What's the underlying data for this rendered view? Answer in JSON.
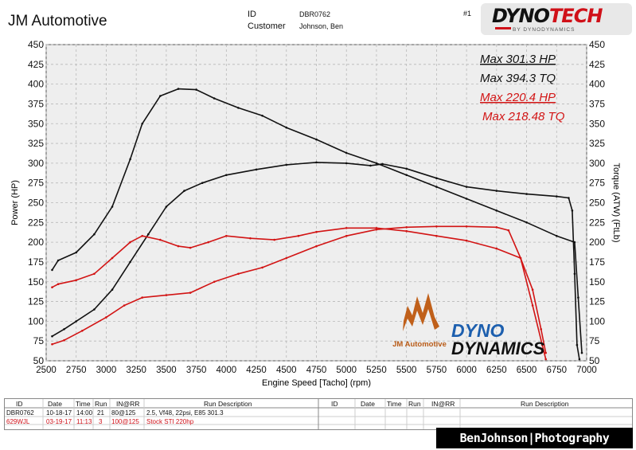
{
  "header": {
    "title": "JM Automotive",
    "id_label": "ID",
    "customer_label": "Customer",
    "id_value": "DBR0762",
    "customer_value": "Johnson, Ben",
    "run_number": "#1",
    "logo_text_a": "DYNO",
    "logo_text_b": "TECH",
    "logo_sub": "BY DYNODYNAMICS"
  },
  "legend": {
    "run1_hp": "Max 301.3 HP",
    "run1_tq": "Max 394.3 TQ",
    "run2_hp": "Max 220.4 HP",
    "run2_tq": "Max 218.48 TQ"
  },
  "overlay_logos": {
    "jm": "JM Automotive",
    "dyno": "DYNO",
    "dynamics": "DYNAMICS"
  },
  "colors": {
    "run1": "#111111",
    "run2": "#d21414",
    "grid": "#b8b8b8",
    "plot_bg": "#eeeeee"
  },
  "chart_data": {
    "type": "line",
    "xlabel": "Engine Speed [Tacho] (rpm)",
    "ylabel_left": "Power (HP)",
    "ylabel_right": "Torque (ATW) (FtLb)",
    "xlim": [
      2500,
      7000
    ],
    "ylim": [
      50,
      450
    ],
    "x_ticks": [
      2500,
      2750,
      3000,
      3250,
      3500,
      3750,
      4000,
      4250,
      4500,
      4750,
      5000,
      5250,
      5500,
      5750,
      6000,
      6250,
      6500,
      6750,
      7000
    ],
    "y_ticks": [
      50,
      75,
      100,
      125,
      150,
      175,
      200,
      225,
      250,
      275,
      300,
      325,
      350,
      375,
      400,
      425,
      450
    ],
    "grid": true,
    "series": [
      {
        "name": "Max 301.3 HP",
        "color": "#111111",
        "points": [
          [
            2550,
            81
          ],
          [
            2650,
            90
          ],
          [
            2750,
            100
          ],
          [
            2900,
            115
          ],
          [
            3050,
            140
          ],
          [
            3200,
            175
          ],
          [
            3350,
            210
          ],
          [
            3500,
            245
          ],
          [
            3650,
            265
          ],
          [
            3800,
            275
          ],
          [
            4000,
            285
          ],
          [
            4250,
            292
          ],
          [
            4500,
            298
          ],
          [
            4750,
            301
          ],
          [
            5000,
            300
          ],
          [
            5200,
            297
          ],
          [
            5300,
            299
          ],
          [
            5500,
            293
          ],
          [
            5750,
            281
          ],
          [
            6000,
            270
          ],
          [
            6250,
            265
          ],
          [
            6500,
            261
          ],
          [
            6750,
            258
          ],
          [
            6850,
            256
          ],
          [
            6880,
            240
          ],
          [
            6900,
            160
          ],
          [
            6920,
            70
          ],
          [
            6940,
            52
          ]
        ]
      },
      {
        "name": "Max 394.3 TQ",
        "color": "#111111",
        "points": [
          [
            2550,
            165
          ],
          [
            2600,
            177
          ],
          [
            2750,
            187
          ],
          [
            2900,
            210
          ],
          [
            3050,
            245
          ],
          [
            3200,
            305
          ],
          [
            3300,
            350
          ],
          [
            3450,
            385
          ],
          [
            3600,
            394
          ],
          [
            3750,
            393
          ],
          [
            3900,
            382
          ],
          [
            4100,
            370
          ],
          [
            4300,
            360
          ],
          [
            4500,
            345
          ],
          [
            4750,
            330
          ],
          [
            5000,
            313
          ],
          [
            5250,
            300
          ],
          [
            5500,
            285
          ],
          [
            5750,
            270
          ],
          [
            6000,
            255
          ],
          [
            6250,
            240
          ],
          [
            6500,
            225
          ],
          [
            6750,
            208
          ],
          [
            6900,
            200
          ],
          [
            6930,
            130
          ],
          [
            6960,
            60
          ]
        ]
      },
      {
        "name": "Max 220.4 HP",
        "color": "#d21414",
        "points": [
          [
            2550,
            71
          ],
          [
            2650,
            76
          ],
          [
            2800,
            88
          ],
          [
            3000,
            105
          ],
          [
            3150,
            120
          ],
          [
            3300,
            130
          ],
          [
            3500,
            133
          ],
          [
            3700,
            136
          ],
          [
            3900,
            150
          ],
          [
            4100,
            160
          ],
          [
            4300,
            168
          ],
          [
            4500,
            180
          ],
          [
            4750,
            195
          ],
          [
            5000,
            208
          ],
          [
            5250,
            216
          ],
          [
            5500,
            219
          ],
          [
            5750,
            220
          ],
          [
            6000,
            220
          ],
          [
            6250,
            219
          ],
          [
            6350,
            215
          ],
          [
            6450,
            180
          ],
          [
            6550,
            120
          ],
          [
            6630,
            70
          ],
          [
            6660,
            52
          ]
        ]
      },
      {
        "name": "Max 218.48 TQ",
        "color": "#d21414",
        "points": [
          [
            2550,
            143
          ],
          [
            2600,
            147
          ],
          [
            2750,
            152
          ],
          [
            2900,
            160
          ],
          [
            3050,
            180
          ],
          [
            3200,
            200
          ],
          [
            3300,
            208
          ],
          [
            3450,
            203
          ],
          [
            3600,
            195
          ],
          [
            3700,
            193
          ],
          [
            3850,
            200
          ],
          [
            4000,
            208
          ],
          [
            4200,
            205
          ],
          [
            4400,
            203
          ],
          [
            4600,
            208
          ],
          [
            4750,
            213
          ],
          [
            5000,
            218
          ],
          [
            5250,
            218
          ],
          [
            5500,
            214
          ],
          [
            5750,
            208
          ],
          [
            6000,
            202
          ],
          [
            6250,
            192
          ],
          [
            6450,
            180
          ],
          [
            6550,
            140
          ],
          [
            6620,
            90
          ],
          [
            6660,
            60
          ]
        ]
      }
    ]
  },
  "table": {
    "left_headers": [
      "ID",
      "Date",
      "Time",
      "Run",
      "IN@RR",
      "Run Description"
    ],
    "right_headers": [
      "ID",
      "Date",
      "Time",
      "Run",
      "IN@RR",
      "Run Description"
    ],
    "rows": [
      {
        "id": "DBR0762",
        "date": "10-18-17",
        "time": "14:00",
        "run": "21",
        "inrr": "80@125",
        "desc": "2.5, Vf48, 22psi, E85 301.3"
      },
      {
        "id": "629WJL",
        "date": "03-19-17",
        "time": "11:13",
        "run": "3",
        "inrr": "100@125",
        "desc": "Stock STI 220hp"
      }
    ]
  },
  "watermark": "BenJohnson|Photography"
}
